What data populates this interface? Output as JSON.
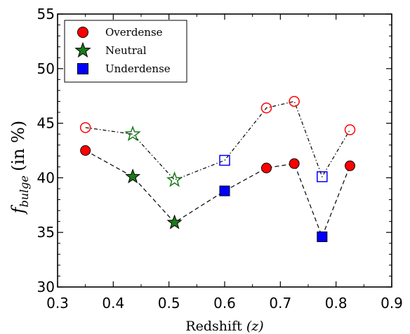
{
  "chart_data": {
    "type": "scatter",
    "xlabel_text": "Redshift",
    "xlabel_var": "(z)",
    "ylabel_main": "f",
    "ylabel_sub": "bulge",
    "ylabel_unit": "(in %)",
    "xlim": [
      0.3,
      0.9
    ],
    "ylim": [
      30,
      55
    ],
    "xticks": [
      "0.3",
      "0.4",
      "0.5",
      "0.6",
      "0.7",
      "0.8",
      "0.9"
    ],
    "yticks": [
      "30",
      "35",
      "40",
      "45",
      "50",
      "55"
    ],
    "legend": {
      "placement": "top-left",
      "entries": [
        {
          "label": "Overdense",
          "marker": "circle",
          "color": "#ff0000"
        },
        {
          "label": "Neutral",
          "marker": "star",
          "color": "#1a7a1a"
        },
        {
          "label": "Underdense",
          "marker": "square",
          "color": "#0000ff"
        }
      ]
    },
    "series": [
      {
        "line_style": "dashed",
        "fill": "filled",
        "points": [
          {
            "x": 0.35,
            "y": 42.5,
            "env": "Overdense"
          },
          {
            "x": 0.435,
            "y": 40.1,
            "env": "Neutral"
          },
          {
            "x": 0.51,
            "y": 35.9,
            "env": "Neutral"
          },
          {
            "x": 0.6,
            "y": 38.8,
            "env": "Underdense"
          },
          {
            "x": 0.675,
            "y": 40.9,
            "env": "Overdense"
          },
          {
            "x": 0.725,
            "y": 41.3,
            "env": "Overdense"
          },
          {
            "x": 0.775,
            "y": 34.6,
            "env": "Underdense"
          },
          {
            "x": 0.825,
            "y": 41.1,
            "env": "Overdense"
          }
        ]
      },
      {
        "line_style": "dashdot",
        "fill": "open",
        "points": [
          {
            "x": 0.35,
            "y": 44.6,
            "env": "Overdense"
          },
          {
            "x": 0.435,
            "y": 44.0,
            "env": "Neutral"
          },
          {
            "x": 0.51,
            "y": 39.8,
            "env": "Neutral"
          },
          {
            "x": 0.6,
            "y": 41.6,
            "env": "Underdense"
          },
          {
            "x": 0.675,
            "y": 46.4,
            "env": "Overdense"
          },
          {
            "x": 0.725,
            "y": 47.0,
            "env": "Overdense"
          },
          {
            "x": 0.775,
            "y": 40.1,
            "env": "Underdense"
          },
          {
            "x": 0.825,
            "y": 44.4,
            "env": "Overdense"
          }
        ]
      }
    ]
  }
}
